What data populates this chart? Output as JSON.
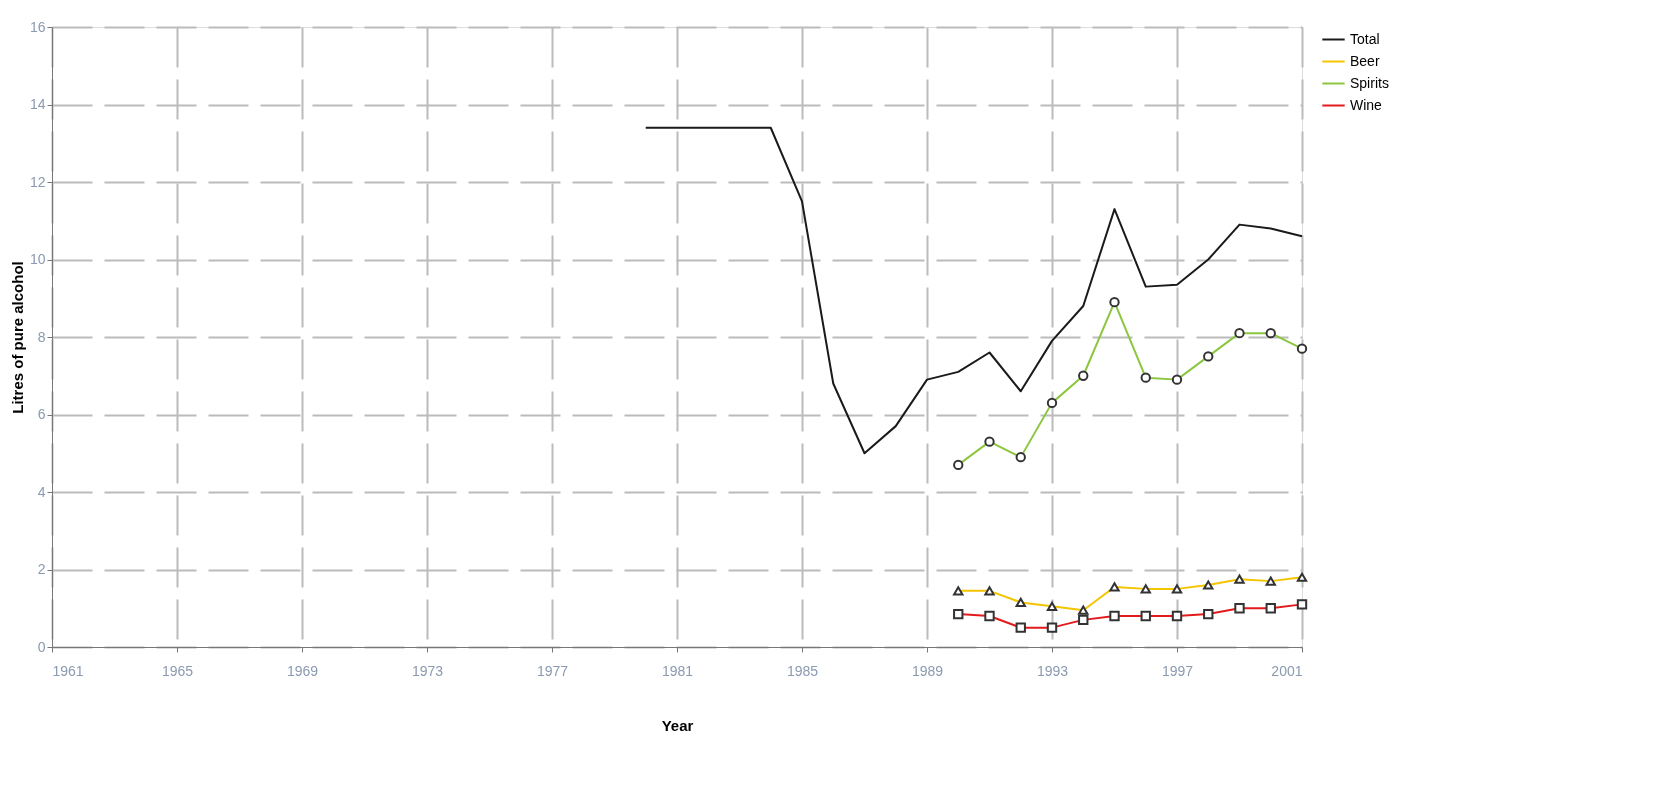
{
  "chart_data": {
    "type": "line",
    "xlabel": "Year",
    "ylabel": "Litres of pure alcohol",
    "xlim": [
      1961,
      2001
    ],
    "xticks": [
      1961,
      1965,
      1969,
      1973,
      1977,
      1981,
      1985,
      1989,
      1993,
      1997,
      2001
    ],
    "ylim": [
      0,
      16
    ],
    "yticks": [
      0,
      2,
      4,
      6,
      8,
      10,
      12,
      14,
      16
    ],
    "grid": true,
    "legend": "right",
    "line_style": "solid",
    "series": [
      {
        "name": "Total",
        "color": "#1a1a1a",
        "marker": "none",
        "x": [
          1980,
          1981,
          1982,
          1983,
          1984,
          1985,
          1986,
          1987,
          1988,
          1989,
          1990,
          1991,
          1992,
          1993,
          1994,
          1995,
          1996,
          1997,
          1998,
          1999,
          2000,
          2001
        ],
        "values": [
          13.4,
          13.4,
          13.4,
          13.4,
          13.4,
          11.5,
          6.8,
          5.0,
          5.7,
          6.9,
          7.1,
          7.6,
          6.6,
          7.9,
          8.8,
          11.3,
          9.3,
          9.35,
          10.0,
          10.9,
          10.8,
          10.6
        ]
      },
      {
        "name": "Beer",
        "color": "#f5c400",
        "marker": "triangle",
        "x": [
          1990,
          1991,
          1992,
          1993,
          1994,
          1995,
          1996,
          1997,
          1998,
          1999,
          2000,
          2001
        ],
        "values": [
          1.45,
          1.45,
          1.15,
          1.05,
          0.95,
          1.55,
          1.5,
          1.5,
          1.6,
          1.75,
          1.7,
          1.8
        ]
      },
      {
        "name": "Spirits",
        "color": "#8cc63f",
        "marker": "circle",
        "x": [
          1990,
          1991,
          1992,
          1993,
          1994,
          1995,
          1996,
          1997,
          1998,
          1999,
          2000,
          2001
        ],
        "values": [
          4.7,
          5.3,
          4.9,
          6.3,
          7.0,
          8.9,
          6.95,
          6.9,
          7.5,
          8.1,
          8.1,
          7.7
        ]
      },
      {
        "name": "Wine",
        "color": "#e31a1c",
        "marker": "square",
        "x": [
          1990,
          1991,
          1992,
          1993,
          1994,
          1995,
          1996,
          1997,
          1998,
          1999,
          2000,
          2001
        ],
        "values": [
          0.85,
          0.8,
          0.5,
          0.5,
          0.7,
          0.8,
          0.8,
          0.8,
          0.85,
          1.0,
          1.0,
          1.1
        ]
      }
    ]
  }
}
